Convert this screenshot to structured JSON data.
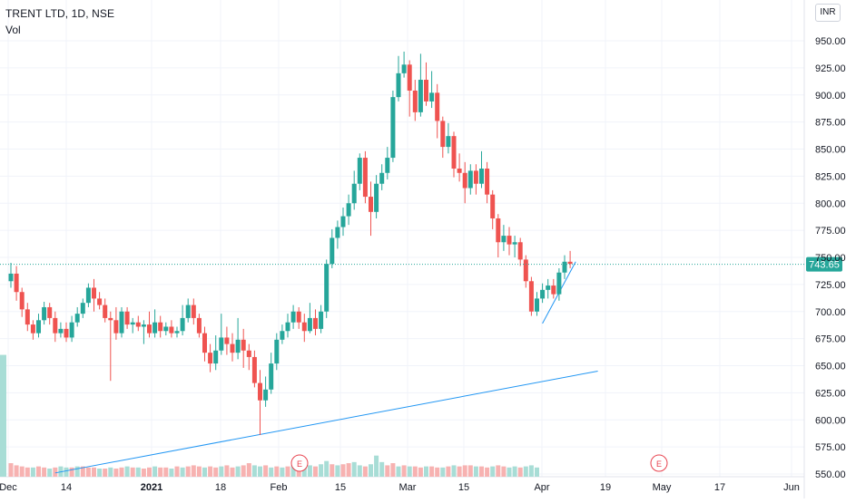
{
  "legend": {
    "symbol": "TRENT LTD, 1D, NSE",
    "volume_label": "Vol"
  },
  "currency": "INR",
  "last_price": "743.65",
  "colors": {
    "up": "#26a69a",
    "down": "#ef5350",
    "up_volume": "#a8ddd6",
    "down_volume": "#f7b2b1",
    "trendline": "#2196f3",
    "grid": "#f0f3fa",
    "last_price_tag": "#26a69a"
  },
  "chart_data": {
    "type": "candlestick",
    "y_ticks": [
      "550.00",
      "575.00",
      "600.00",
      "625.00",
      "650.00",
      "675.00",
      "700.00",
      "725.00",
      "750.00",
      "775.00",
      "800.00",
      "825.00",
      "850.00",
      "875.00",
      "900.00",
      "925.00",
      "950.00"
    ],
    "ylim": [
      550,
      975
    ],
    "x_ticks": [
      "Dec",
      "14",
      "2021",
      "18",
      "Feb",
      "15",
      "Mar",
      "15",
      "Apr",
      "19",
      "May",
      "17",
      "Jun"
    ],
    "earnings_marker": "E",
    "candles": [
      [
        728,
        735,
        745,
        722
      ],
      [
        735,
        718,
        742,
        710
      ],
      [
        718,
        702,
        722,
        695
      ],
      [
        702,
        688,
        708,
        682
      ],
      [
        688,
        680,
        692,
        674
      ],
      [
        680,
        692,
        698,
        676
      ],
      [
        692,
        704,
        709,
        688
      ],
      [
        704,
        694,
        708,
        688
      ],
      [
        694,
        680,
        700,
        672
      ],
      [
        680,
        684,
        690,
        676
      ],
      [
        684,
        676,
        690,
        672
      ],
      [
        676,
        690,
        696,
        672
      ],
      [
        690,
        698,
        704,
        686
      ],
      [
        698,
        708,
        712,
        694
      ],
      [
        708,
        722,
        726,
        704
      ],
      [
        722,
        712,
        730,
        700
      ],
      [
        712,
        706,
        718,
        702
      ],
      [
        706,
        694,
        712,
        690
      ],
      [
        694,
        692,
        700,
        636
      ],
      [
        692,
        680,
        704,
        674
      ],
      [
        680,
        700,
        704,
        676
      ],
      [
        700,
        688,
        704,
        684
      ],
      [
        688,
        690,
        694,
        680
      ],
      [
        690,
        686,
        696,
        682
      ],
      [
        686,
        688,
        692,
        670
      ],
      [
        688,
        680,
        700,
        676
      ],
      [
        680,
        690,
        702,
        676
      ],
      [
        690,
        682,
        696,
        676
      ],
      [
        682,
        686,
        690,
        678
      ],
      [
        686,
        680,
        692,
        676
      ],
      [
        680,
        682,
        686,
        676
      ],
      [
        682,
        694,
        706,
        678
      ],
      [
        694,
        706,
        712,
        690
      ],
      [
        706,
        694,
        712,
        688
      ],
      [
        694,
        680,
        698,
        676
      ],
      [
        680,
        662,
        686,
        654
      ],
      [
        662,
        652,
        670,
        644
      ],
      [
        652,
        664,
        678,
        646
      ],
      [
        664,
        676,
        698,
        660
      ],
      [
        676,
        670,
        686,
        660
      ],
      [
        670,
        662,
        680,
        654
      ],
      [
        662,
        674,
        694,
        656
      ],
      [
        674,
        664,
        684,
        648
      ],
      [
        664,
        658,
        670,
        646
      ],
      [
        658,
        634,
        664,
        630
      ],
      [
        634,
        618,
        646,
        586
      ],
      [
        618,
        628,
        640,
        612
      ],
      [
        628,
        652,
        662,
        624
      ],
      [
        652,
        674,
        680,
        646
      ],
      [
        674,
        682,
        688,
        670
      ],
      [
        682,
        690,
        698,
        676
      ],
      [
        690,
        700,
        706,
        684
      ],
      [
        700,
        690,
        704,
        684
      ],
      [
        690,
        682,
        698,
        672
      ],
      [
        682,
        694,
        708,
        680
      ],
      [
        694,
        684,
        702,
        678
      ],
      [
        684,
        700,
        706,
        680
      ],
      [
        700,
        744,
        748,
        694
      ],
      [
        744,
        768,
        776,
        740
      ],
      [
        768,
        778,
        784,
        758
      ],
      [
        778,
        788,
        796,
        770
      ],
      [
        788,
        800,
        808,
        780
      ],
      [
        800,
        818,
        830,
        794
      ],
      [
        818,
        842,
        846,
        812
      ],
      [
        842,
        806,
        848,
        800
      ],
      [
        806,
        792,
        820,
        770
      ],
      [
        792,
        818,
        826,
        786
      ],
      [
        818,
        828,
        836,
        812
      ],
      [
        828,
        842,
        852,
        822
      ],
      [
        842,
        898,
        904,
        838
      ],
      [
        898,
        920,
        936,
        894
      ],
      [
        920,
        928,
        940,
        916
      ],
      [
        928,
        904,
        932,
        880
      ],
      [
        904,
        884,
        914,
        876
      ],
      [
        884,
        914,
        938,
        880
      ],
      [
        914,
        894,
        930,
        890
      ],
      [
        894,
        902,
        922,
        888
      ],
      [
        902,
        876,
        910,
        860
      ],
      [
        876,
        852,
        880,
        842
      ],
      [
        852,
        862,
        874,
        846
      ],
      [
        862,
        832,
        866,
        824
      ],
      [
        832,
        828,
        846,
        820
      ],
      [
        828,
        814,
        838,
        800
      ],
      [
        814,
        830,
        836,
        808
      ],
      [
        830,
        818,
        836,
        808
      ],
      [
        818,
        832,
        848,
        814
      ],
      [
        832,
        808,
        838,
        800
      ],
      [
        808,
        786,
        812,
        776
      ],
      [
        786,
        764,
        790,
        750
      ],
      [
        764,
        770,
        780,
        756
      ],
      [
        770,
        762,
        778,
        752
      ],
      [
        762,
        764,
        770,
        750
      ],
      [
        764,
        748,
        768,
        742
      ],
      [
        748,
        728,
        752,
        722
      ],
      [
        728,
        700,
        732,
        696
      ],
      [
        700,
        712,
        718,
        696
      ],
      [
        712,
        720,
        726,
        708
      ],
      [
        720,
        724,
        730,
        712
      ],
      [
        724,
        716,
        730,
        712
      ],
      [
        716,
        736,
        740,
        710
      ],
      [
        736,
        746,
        752,
        730
      ],
      [
        746,
        744,
        756,
        740
      ]
    ],
    "volume": [
      {
        "v": 660,
        "dir": "up",
        "offset": -9
      },
      {
        "v": 560,
        "dir": "down",
        "offset": 0
      },
      {
        "v": 558,
        "dir": "down",
        "offset": 1
      },
      {
        "v": 557,
        "dir": "down",
        "offset": 2
      },
      {
        "v": 556,
        "dir": "down",
        "offset": 3
      },
      {
        "v": 556,
        "dir": "up",
        "offset": 4
      },
      {
        "v": 557,
        "dir": "down",
        "offset": 5
      },
      {
        "v": 556,
        "dir": "down",
        "offset": 6
      },
      {
        "v": 555,
        "dir": "up",
        "offset": 7
      },
      {
        "v": 556,
        "dir": "down",
        "offset": 8
      },
      {
        "v": 557,
        "dir": "up",
        "offset": 9
      },
      {
        "v": 556,
        "dir": "up",
        "offset": 10
      },
      {
        "v": 556,
        "dir": "down",
        "offset": 11
      },
      {
        "v": 557,
        "dir": "up",
        "offset": 12
      },
      {
        "v": 557,
        "dir": "down",
        "offset": 13
      },
      {
        "v": 556,
        "dir": "down",
        "offset": 14
      },
      {
        "v": 556,
        "dir": "down",
        "offset": 15
      },
      {
        "v": 555,
        "dir": "up",
        "offset": 16
      },
      {
        "v": 555,
        "dir": "down",
        "offset": 17
      },
      {
        "v": 556,
        "dir": "up",
        "offset": 18
      },
      {
        "v": 555,
        "dir": "down",
        "offset": 19
      },
      {
        "v": 556,
        "dir": "down",
        "offset": 20
      },
      {
        "v": 557,
        "dir": "up",
        "offset": 21
      },
      {
        "v": 556,
        "dir": "down",
        "offset": 22
      },
      {
        "v": 556,
        "dir": "up",
        "offset": 23
      },
      {
        "v": 555,
        "dir": "down",
        "offset": 24
      },
      {
        "v": 556,
        "dir": "down",
        "offset": 25
      },
      {
        "v": 557,
        "dir": "up",
        "offset": 26
      },
      {
        "v": 556,
        "dir": "down",
        "offset": 27
      },
      {
        "v": 556,
        "dir": "down",
        "offset": 28
      },
      {
        "v": 555,
        "dir": "up",
        "offset": 29
      },
      {
        "v": 557,
        "dir": "down",
        "offset": 30
      },
      {
        "v": 556,
        "dir": "up",
        "offset": 31
      },
      {
        "v": 557,
        "dir": "down",
        "offset": 32
      },
      {
        "v": 558,
        "dir": "down",
        "offset": 33
      },
      {
        "v": 557,
        "dir": "down",
        "offset": 34
      },
      {
        "v": 556,
        "dir": "up",
        "offset": 35
      },
      {
        "v": 557,
        "dir": "down",
        "offset": 36
      },
      {
        "v": 556,
        "dir": "down",
        "offset": 37
      },
      {
        "v": 557,
        "dir": "up",
        "offset": 38
      },
      {
        "v": 558,
        "dir": "down",
        "offset": 39
      },
      {
        "v": 556,
        "dir": "down",
        "offset": 40
      },
      {
        "v": 557,
        "dir": "up",
        "offset": 41
      },
      {
        "v": 558,
        "dir": "down",
        "offset": 42
      },
      {
        "v": 560,
        "dir": "down",
        "offset": 43
      },
      {
        "v": 558,
        "dir": "up",
        "offset": 44
      },
      {
        "v": 557,
        "dir": "up",
        "offset": 45
      },
      {
        "v": 558,
        "dir": "down",
        "offset": 46
      },
      {
        "v": 556,
        "dir": "up",
        "offset": 47
      },
      {
        "v": 557,
        "dir": "down",
        "offset": 48
      },
      {
        "v": 556,
        "dir": "up",
        "offset": 49
      },
      {
        "v": 557,
        "dir": "down",
        "offset": 50
      },
      {
        "v": 558,
        "dir": "up",
        "offset": 51
      },
      {
        "v": 557,
        "dir": "down",
        "offset": 52
      },
      {
        "v": 556,
        "dir": "up",
        "offset": 53
      },
      {
        "v": 558,
        "dir": "up",
        "offset": 54
      },
      {
        "v": 557,
        "dir": "down",
        "offset": 55
      },
      {
        "v": 559,
        "dir": "up",
        "offset": 56
      },
      {
        "v": 562,
        "dir": "up",
        "offset": 57
      },
      {
        "v": 559,
        "dir": "down",
        "offset": 58
      },
      {
        "v": 558,
        "dir": "up",
        "offset": 59
      },
      {
        "v": 559,
        "dir": "down",
        "offset": 60
      },
      {
        "v": 560,
        "dir": "down",
        "offset": 61
      },
      {
        "v": 561,
        "dir": "up",
        "offset": 62
      },
      {
        "v": 558,
        "dir": "up",
        "offset": 63
      },
      {
        "v": 557,
        "dir": "down",
        "offset": 64
      },
      {
        "v": 559,
        "dir": "up",
        "offset": 65
      },
      {
        "v": 567,
        "dir": "up",
        "offset": 66
      },
      {
        "v": 561,
        "dir": "up",
        "offset": 67
      },
      {
        "v": 558,
        "dir": "down",
        "offset": 68
      },
      {
        "v": 560,
        "dir": "down",
        "offset": 69
      },
      {
        "v": 557,
        "dir": "up",
        "offset": 70
      },
      {
        "v": 558,
        "dir": "down",
        "offset": 71
      },
      {
        "v": 557,
        "dir": "up",
        "offset": 72
      },
      {
        "v": 557,
        "dir": "down",
        "offset": 73
      },
      {
        "v": 556,
        "dir": "down",
        "offset": 74
      },
      {
        "v": 557,
        "dir": "up",
        "offset": 75
      },
      {
        "v": 557,
        "dir": "down",
        "offset": 76
      },
      {
        "v": 556,
        "dir": "down",
        "offset": 77
      },
      {
        "v": 556,
        "dir": "up",
        "offset": 78
      },
      {
        "v": 557,
        "dir": "down",
        "offset": 79
      },
      {
        "v": 558,
        "dir": "up",
        "offset": 80
      },
      {
        "v": 557,
        "dir": "down",
        "offset": 81
      },
      {
        "v": 558,
        "dir": "down",
        "offset": 82
      },
      {
        "v": 558,
        "dir": "down",
        "offset": 83
      },
      {
        "v": 557,
        "dir": "up",
        "offset": 84
      },
      {
        "v": 557,
        "dir": "down",
        "offset": 85
      },
      {
        "v": 556,
        "dir": "down",
        "offset": 86
      },
      {
        "v": 557,
        "dir": "up",
        "offset": 87
      },
      {
        "v": 558,
        "dir": "down",
        "offset": 88
      },
      {
        "v": 557,
        "dir": "down",
        "offset": 89
      },
      {
        "v": 556,
        "dir": "up",
        "offset": 90
      },
      {
        "v": 557,
        "dir": "up",
        "offset": 91
      },
      {
        "v": 556,
        "dir": "down",
        "offset": 92
      },
      {
        "v": 557,
        "dir": "up",
        "offset": 93
      },
      {
        "v": 558,
        "dir": "up",
        "offset": 94
      },
      {
        "v": 556,
        "dir": "up",
        "offset": 95
      }
    ],
    "trendlines": [
      {
        "start_index": 8,
        "start_value": 551,
        "end_index": 106,
        "end_value": 645
      },
      {
        "start_index": 96,
        "start_value": 689,
        "end_index": 102,
        "end_value": 746
      }
    ]
  }
}
